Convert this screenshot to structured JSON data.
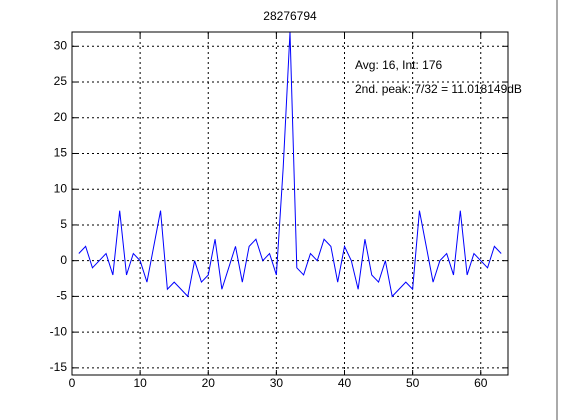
{
  "chart_data": {
    "type": "line",
    "title": "28276794",
    "annotations": [
      "Avg: 16, Int: 176",
      "2nd. peak: 7/32 = 11.018149dB"
    ],
    "x": [
      1,
      2,
      3,
      4,
      5,
      6,
      7,
      8,
      9,
      10,
      11,
      12,
      13,
      14,
      15,
      16,
      17,
      18,
      19,
      20,
      21,
      22,
      23,
      24,
      25,
      26,
      27,
      28,
      29,
      30,
      31,
      32,
      33,
      34,
      35,
      36,
      37,
      38,
      39,
      40,
      41,
      42,
      43,
      44,
      45,
      46,
      47,
      48,
      49,
      50,
      51,
      52,
      53,
      54,
      55,
      56,
      57,
      58,
      59,
      60,
      61,
      62,
      63
    ],
    "series": [
      {
        "color": "#0000ff",
        "values": [
          1,
          2,
          -1,
          0,
          1,
          -2,
          7,
          -2,
          1,
          0,
          -3,
          2,
          7,
          -4,
          -3,
          -4,
          -5,
          0,
          -3,
          -2,
          3,
          -4,
          -1,
          2,
          -3,
          2,
          3,
          0,
          1,
          -2,
          13,
          32,
          -1,
          -2,
          1,
          0,
          3,
          2,
          -3,
          2,
          0,
          -4,
          3,
          -2,
          -3,
          0,
          -5,
          -4,
          -3,
          -4,
          7,
          2,
          -3,
          0,
          1,
          -2,
          7,
          -2,
          1,
          0,
          -1,
          2,
          1
        ]
      }
    ],
    "xlim": [
      0,
      64
    ],
    "ylim": [
      -16,
      32
    ],
    "xticks": [
      0,
      10,
      20,
      30,
      40,
      50,
      60
    ],
    "yticks": [
      -15,
      -10,
      -5,
      0,
      5,
      10,
      15,
      20,
      25,
      30
    ],
    "grid": true
  }
}
